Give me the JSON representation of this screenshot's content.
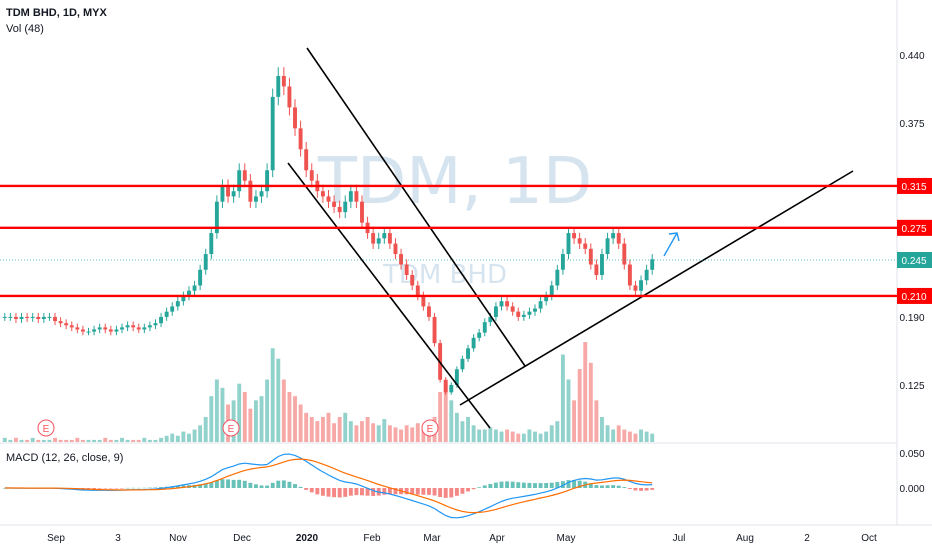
{
  "header": {
    "symbol_line": "TDM BHD, 1D, MYX",
    "volume_label": "Vol (48)",
    "macd_label": "MACD (12, 26, close, 9)"
  },
  "watermark": {
    "big": "TDM, 1D",
    "small": "TDM BHD"
  },
  "colors": {
    "up": "#26a69a",
    "down": "#ef5350",
    "level": "#ff0000",
    "trendline": "#000000",
    "arrow": "#2196f3",
    "current": "#26a69a",
    "macd_line": "#2196f3",
    "signal_line": "#ff6d00"
  },
  "chart_data": [
    {
      "type": "line",
      "title": "TDM BHD, 1D, MYX",
      "x_ticks": [
        "Sep",
        "3",
        "Nov",
        "Dec",
        "2020",
        "Feb",
        "Mar",
        "Apr",
        "May",
        "Jul",
        "Aug",
        "2",
        "Oct"
      ],
      "y_ticks": [
        0.44,
        0.375,
        0.19,
        0.125
      ],
      "ylim": [
        0.1,
        0.46
      ],
      "price_series_close": [
        0.19,
        0.19,
        0.188,
        0.19,
        0.189,
        0.19,
        0.188,
        0.19,
        0.19,
        0.186,
        0.184,
        0.182,
        0.18,
        0.178,
        0.176,
        0.176,
        0.178,
        0.18,
        0.178,
        0.176,
        0.178,
        0.18,
        0.182,
        0.18,
        0.178,
        0.18,
        0.182,
        0.184,
        0.19,
        0.195,
        0.2,
        0.205,
        0.21,
        0.215,
        0.22,
        0.235,
        0.25,
        0.27,
        0.3,
        0.315,
        0.305,
        0.31,
        0.33,
        0.32,
        0.3,
        0.305,
        0.31,
        0.33,
        0.4,
        0.42,
        0.41,
        0.39,
        0.37,
        0.35,
        0.33,
        0.32,
        0.31,
        0.305,
        0.3,
        0.295,
        0.29,
        0.3,
        0.31,
        0.3,
        0.28,
        0.27,
        0.26,
        0.265,
        0.27,
        0.26,
        0.25,
        0.24,
        0.23,
        0.22,
        0.21,
        0.2,
        0.19,
        0.165,
        0.13,
        0.118,
        0.125,
        0.14,
        0.15,
        0.16,
        0.17,
        0.175,
        0.185,
        0.19,
        0.2,
        0.205,
        0.2,
        0.195,
        0.19,
        0.192,
        0.195,
        0.198,
        0.205,
        0.21,
        0.22,
        0.235,
        0.25,
        0.27,
        0.265,
        0.26,
        0.255,
        0.24,
        0.23,
        0.25,
        0.265,
        0.27,
        0.26,
        0.24,
        0.22,
        0.215,
        0.225,
        0.235,
        0.245
      ],
      "horizontal_levels": [
        {
          "label": "0.315",
          "value": 0.315
        },
        {
          "label": "0.275",
          "value": 0.275
        },
        {
          "label": "0.210",
          "value": 0.21
        }
      ],
      "current_price_label": "0.245",
      "current_price": 0.245
    },
    {
      "type": "bar",
      "title": "Vol (48)",
      "values": [
        2,
        1,
        2,
        1,
        1,
        2,
        1,
        1,
        1,
        2,
        1,
        1,
        1,
        2,
        1,
        1,
        1,
        1,
        2,
        1,
        1,
        2,
        1,
        1,
        1,
        2,
        1,
        1,
        2,
        3,
        4,
        3,
        5,
        4,
        6,
        8,
        12,
        22,
        30,
        26,
        18,
        20,
        28,
        24,
        16,
        20,
        22,
        30,
        45,
        40,
        30,
        24,
        22,
        18,
        14,
        12,
        10,
        12,
        14,
        9,
        12,
        14,
        10,
        8,
        10,
        12,
        9,
        8,
        11,
        8,
        7,
        6,
        8,
        7,
        9,
        6,
        8,
        12,
        24,
        28,
        20,
        14,
        10,
        12,
        8,
        6,
        6,
        7,
        6,
        5,
        6,
        5,
        4,
        4,
        6,
        5,
        4,
        5,
        8,
        10,
        42,
        30,
        20,
        35,
        48,
        38,
        20,
        12,
        8,
        6,
        8,
        6,
        5,
        4,
        6,
        5,
        4
      ]
    },
    {
      "type": "line",
      "title": "MACD (12, 26, close, 9)",
      "y_ticks": [
        0.05,
        0.0
      ],
      "ylim": [
        -0.05,
        0.06
      ]
    }
  ]
}
